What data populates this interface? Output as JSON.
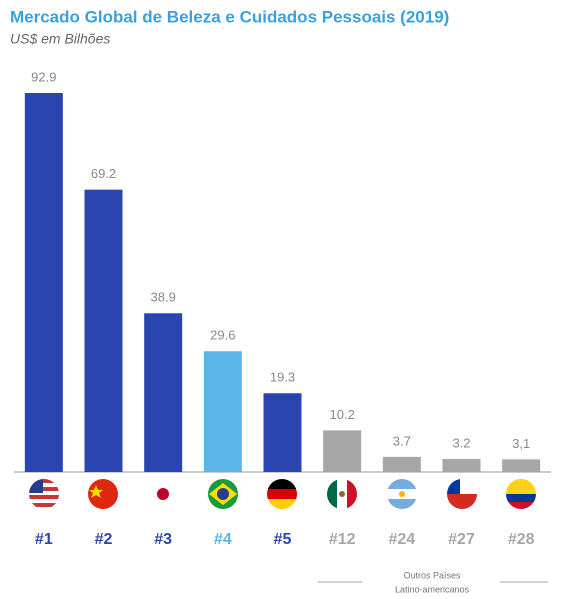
{
  "chart_data": {
    "type": "bar",
    "title": "Mercado Global de Beleza e Cuidados Pessoais (2019)",
    "subtitle": "US$ em Bilhões",
    "categories": [
      "#1",
      "#2",
      "#3",
      "#4",
      "#5",
      "#12",
      "#24",
      "#27",
      "#28"
    ],
    "values": [
      92.9,
      69.2,
      38.9,
      29.6,
      19.3,
      10.2,
      3.7,
      3.2,
      3.1
    ],
    "value_labels": [
      "92.9",
      "69.2",
      "38.9",
      "29.6",
      "19.3",
      "10.2",
      "3.7",
      "3.2",
      "3,1"
    ],
    "colors": [
      "#2a45b0",
      "#2a45b0",
      "#2a45b0",
      "#5ab4e8",
      "#2a45b0",
      "#a6a6a6",
      "#a6a6a6",
      "#a6a6a6",
      "#a6a6a6"
    ],
    "ylim": [
      0,
      100
    ],
    "annotation": [
      "Outros Países",
      "Latino-americanos"
    ]
  }
}
